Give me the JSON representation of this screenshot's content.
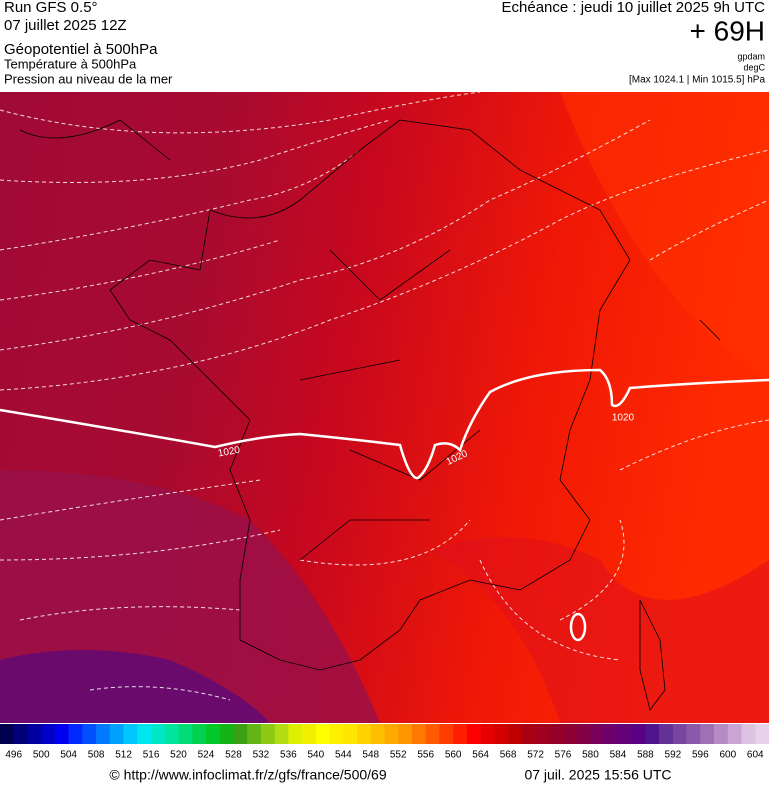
{
  "header": {
    "run": "Run GFS 0.5°",
    "run_date": "07 juillet 2025 12Z",
    "field_1": "Géopotentiel à 500hPa",
    "field_2": "Température à 500hPa",
    "field_3": "Pression au niveau de la mer",
    "valid": "Echéance : jeudi 10 juillet 2025 9h UTC",
    "lead": "+ 69H",
    "unit_1": "gpdam",
    "unit_2": "degC",
    "range": "[Max 1024.1 | Min 1015.5] hPa"
  },
  "isobar_labels": [
    "1020",
    "1020",
    "1020"
  ],
  "colorbar": {
    "labels": [
      "496",
      "500",
      "504",
      "508",
      "512",
      "516",
      "520",
      "524",
      "528",
      "532",
      "536",
      "540",
      "544",
      "548",
      "552",
      "556",
      "560",
      "564",
      "568",
      "572",
      "576",
      "580",
      "584",
      "588",
      "592",
      "596",
      "600",
      "604"
    ]
  },
  "footer": {
    "url": "© http://www.infoclimat.fr/z/gfs/france/500/69",
    "timestamp": "07 juil. 2025 15:56 UTC"
  }
}
